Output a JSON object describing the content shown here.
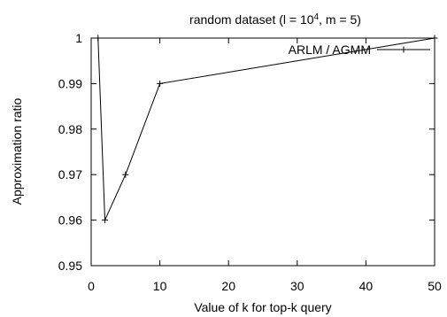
{
  "chart_data": {
    "type": "line",
    "title": {
      "prefix": "random dataset (l = 10",
      "superscript": "4",
      "suffix": ", m = 5)"
    },
    "xlabel": "Value of k for top-k query",
    "ylabel": "Approximation ratio",
    "xlim": [
      0,
      50
    ],
    "ylim": [
      0.95,
      1
    ],
    "x_ticks": [
      0,
      10,
      20,
      30,
      40,
      50
    ],
    "y_ticks": [
      0.95,
      0.96,
      0.97,
      0.98,
      0.99,
      1
    ],
    "x_tick_labels": [
      "0",
      "10",
      "20",
      "30",
      "40",
      "50"
    ],
    "y_tick_labels": [
      "0.95",
      "0.96",
      "0.97",
      "0.98",
      "0.99",
      "1"
    ],
    "grid": false,
    "legend": {
      "placement": "top-right",
      "entries": [
        "ARLM / AGMM"
      ]
    },
    "series": [
      {
        "name": "ARLM / AGMM",
        "x": [
          1,
          2,
          5,
          10,
          50
        ],
        "y": [
          1.0,
          0.96,
          0.97,
          0.99,
          1.0
        ],
        "color": "#000000",
        "marker": "plus"
      }
    ]
  }
}
